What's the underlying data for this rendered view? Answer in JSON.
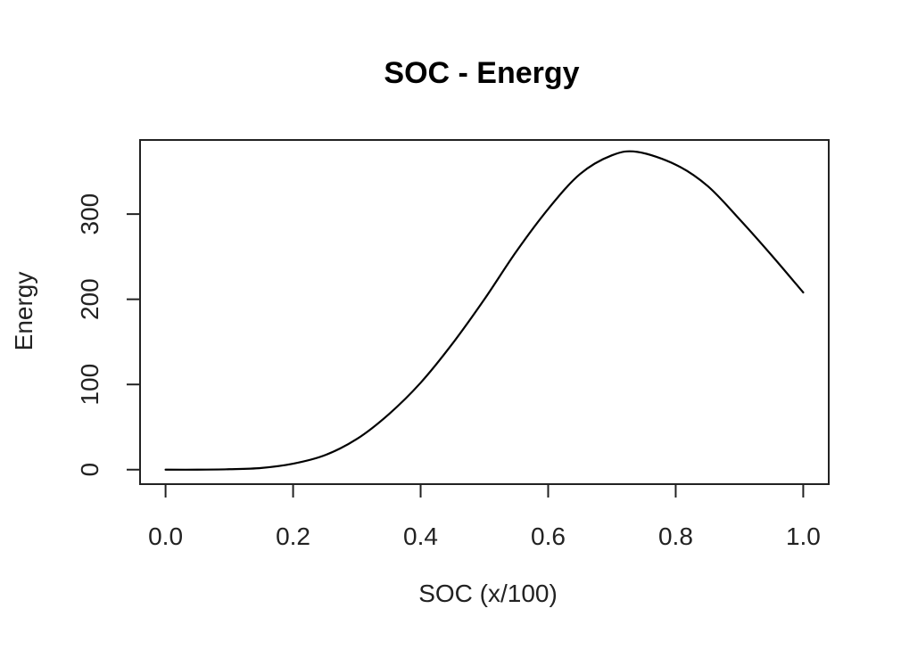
{
  "chart_data": {
    "type": "line",
    "title": "SOC - Energy",
    "xlabel": "SOC (x/100)",
    "ylabel": "Energy",
    "xlim": [
      -0.04,
      1.04
    ],
    "ylim": [
      -17,
      387
    ],
    "x_ticks": [
      0.0,
      0.2,
      0.4,
      0.6,
      0.8,
      1.0
    ],
    "x_tick_labels": [
      "0.0",
      "0.2",
      "0.4",
      "0.6",
      "0.8",
      "1.0"
    ],
    "y_ticks": [
      0,
      100,
      200,
      300
    ],
    "y_tick_labels": [
      "0",
      "100",
      "200",
      "300"
    ],
    "grid": false,
    "box": true,
    "colors": {
      "line": "#000000",
      "axis": "#222222"
    },
    "series": [
      {
        "x": [
          0.0,
          0.05,
          0.1,
          0.15,
          0.2,
          0.25,
          0.3,
          0.35,
          0.4,
          0.45,
          0.5,
          0.55,
          0.6,
          0.65,
          0.7,
          0.74,
          0.8,
          0.85,
          0.9,
          0.95,
          1.0
        ],
        "y": [
          0,
          0,
          0.5,
          2,
          7,
          17,
          36,
          65,
          102,
          148,
          200,
          256,
          306,
          347,
          369,
          373,
          358,
          333,
          294,
          252,
          208
        ]
      }
    ]
  }
}
